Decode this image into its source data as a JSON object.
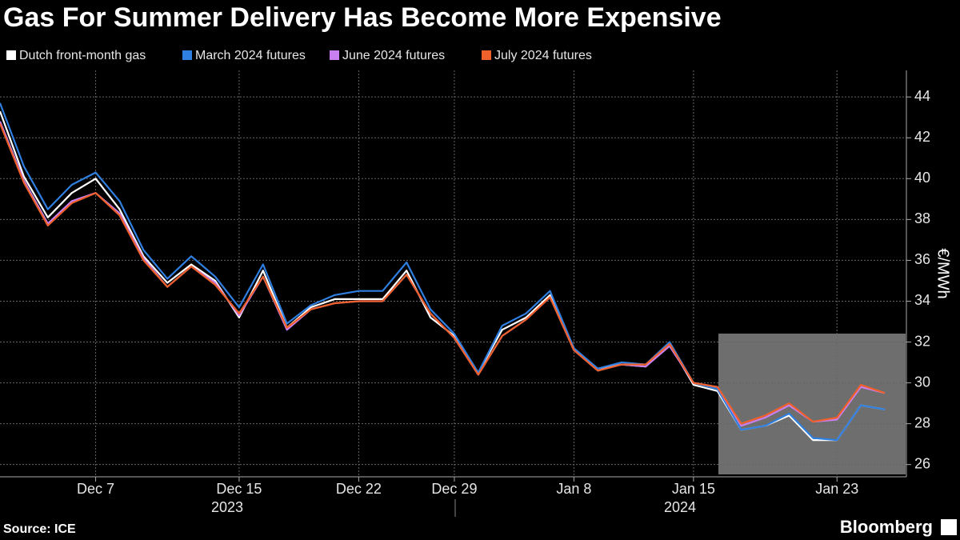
{
  "chart_data": {
    "type": "line",
    "title": "Gas For Summer Delivery Has Become More Expensive",
    "source": "Source: ICE",
    "brand": "Bloomberg",
    "y_label": "€/MWh",
    "year_labels": [
      "2023",
      "2024"
    ],
    "categories": [
      null,
      null,
      null,
      null,
      "Dec 7",
      null,
      null,
      null,
      null,
      null,
      "Dec 15",
      null,
      null,
      null,
      null,
      "Dec 22",
      null,
      null,
      null,
      "Dec 29",
      null,
      null,
      null,
      null,
      "Jan 8",
      null,
      null,
      null,
      null,
      "Jan 15",
      null,
      null,
      null,
      null,
      null,
      "Jan 23",
      null,
      null
    ],
    "series": [
      {
        "name": "Dutch front-month gas",
        "color": "#ffffff",
        "values": [
          43.3,
          40.1,
          38.1,
          39.3,
          40.0,
          38.5,
          36.2,
          34.9,
          35.8,
          35.0,
          33.2,
          35.5,
          32.7,
          33.7,
          34.1,
          34.1,
          34.1,
          35.5,
          33.2,
          32.3,
          30.5,
          32.6,
          33.2,
          34.3,
          31.6,
          30.7,
          30.9,
          30.8,
          31.9,
          29.9,
          29.6,
          27.7,
          27.9,
          28.4,
          27.2,
          27.2,
          28.9,
          28.7
        ]
      },
      {
        "name": "March 2024 futures",
        "color": "#2f7fe0",
        "values": [
          43.7,
          40.6,
          38.5,
          39.7,
          40.3,
          38.9,
          36.5,
          35.1,
          36.2,
          35.2,
          33.7,
          35.8,
          32.9,
          33.8,
          34.3,
          34.5,
          34.5,
          35.9,
          33.6,
          32.4,
          30.5,
          32.8,
          33.4,
          34.5,
          31.7,
          30.7,
          31.0,
          30.9,
          32.0,
          30.0,
          29.7,
          27.7,
          27.9,
          28.5,
          27.3,
          27.2,
          28.9,
          28.7
        ]
      },
      {
        "name": "June 2024 futures",
        "color": "#c87ff0",
        "values": [
          42.8,
          39.9,
          37.8,
          38.9,
          39.3,
          38.3,
          36.1,
          34.7,
          35.7,
          34.9,
          33.3,
          35.2,
          32.6,
          33.6,
          33.9,
          34.0,
          34.0,
          35.3,
          33.4,
          32.2,
          30.4,
          32.3,
          33.1,
          34.2,
          31.6,
          30.6,
          30.9,
          30.8,
          31.8,
          30.0,
          29.8,
          27.9,
          28.3,
          28.9,
          28.1,
          28.2,
          29.8,
          29.5
        ]
      },
      {
        "name": "July 2024 futures",
        "color": "#f0602a",
        "values": [
          42.7,
          39.8,
          37.7,
          38.8,
          39.3,
          38.2,
          36.0,
          34.7,
          35.7,
          34.8,
          33.4,
          35.2,
          32.7,
          33.6,
          33.9,
          34.0,
          34.0,
          35.3,
          33.4,
          32.2,
          30.4,
          32.3,
          33.1,
          34.2,
          31.6,
          30.6,
          30.9,
          30.9,
          31.9,
          30.0,
          29.8,
          28.0,
          28.4,
          29.0,
          28.1,
          28.3,
          29.9,
          29.5
        ]
      }
    ],
    "ylim": [
      25.4,
      45.3
    ],
    "yticks": [
      26,
      28,
      30,
      32,
      34,
      36,
      38,
      40,
      42,
      44
    ],
    "grid": true
  }
}
